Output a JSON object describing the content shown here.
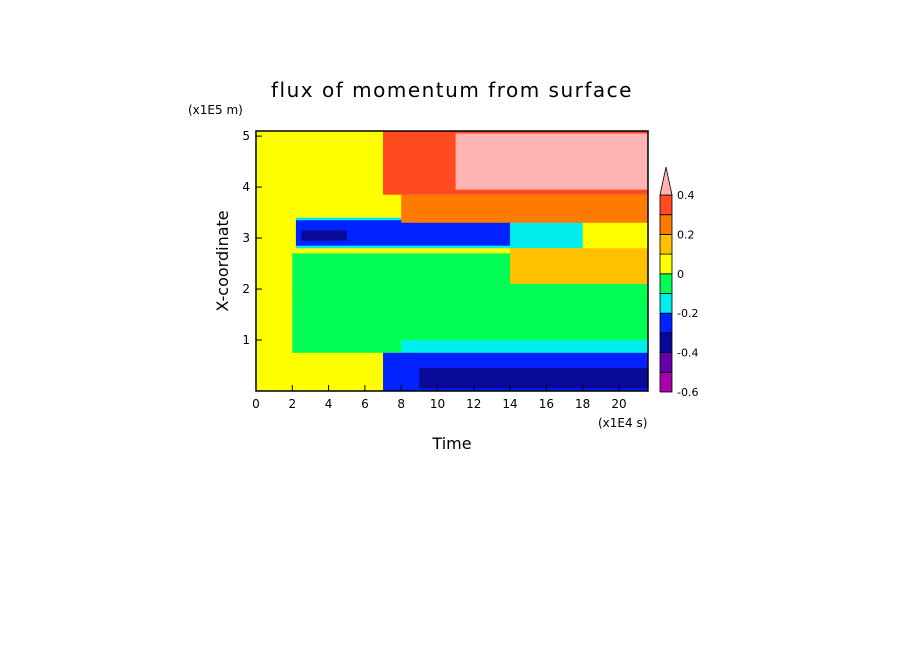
{
  "chart_data": {
    "type": "heatmap",
    "title": "flux of momentum from surface",
    "xlabel": "Time",
    "ylabel": "X-coordinate",
    "x_unit": "(x1E4 s)",
    "y_unit": "(x1E5 m)",
    "xlim": [
      0,
      21.6
    ],
    "ylim": [
      0,
      5.1
    ],
    "x_ticks": [
      0,
      2,
      4,
      6,
      8,
      10,
      12,
      14,
      16,
      18,
      20
    ],
    "x_tick_labels": [
      "0",
      "2",
      "4",
      "6",
      "8",
      "10",
      "12",
      "14",
      "16",
      "18",
      "20"
    ],
    "y_ticks": [
      1,
      2,
      3,
      4,
      5
    ],
    "y_tick_labels": [
      "1",
      "2",
      "3",
      "4",
      "5"
    ],
    "colorbar": {
      "levels": [
        -0.6,
        -0.5,
        -0.4,
        -0.3,
        -0.2,
        -0.1,
        0,
        0.1,
        0.2,
        0.3,
        0.4
      ],
      "tick_values": [
        -0.6,
        -0.4,
        -0.2,
        0,
        0.2,
        0.4
      ],
      "tick_labels": [
        "-0.6",
        "-0.4",
        "-0.2",
        "0",
        "0.2",
        "0.4"
      ],
      "colors": [
        "#aa00aa",
        "#6600aa",
        "#0a0a99",
        "#0022ff",
        "#00eeee",
        "#00ff55",
        "#ffff00",
        "#ffc000",
        "#ff7a00",
        "#ff4b1e"
      ],
      "extend_color": "#ffb4b4"
    },
    "regions": [
      {
        "name": "background-zero-to-positive",
        "x": [
          0,
          21.6
        ],
        "y": [
          0,
          5.1
        ],
        "value": 0.05
      },
      {
        "name": "lower-middle-negative",
        "x": [
          2,
          21.6
        ],
        "y": [
          0.75,
          2.0
        ],
        "value": -0.05
      },
      {
        "name": "middle-negative",
        "x": [
          2,
          21.6
        ],
        "y": [
          2.0,
          2.7
        ],
        "value": -0.05
      },
      {
        "name": "lower-cyan",
        "x": [
          8,
          21.6
        ],
        "y": [
          0.75,
          1.0
        ],
        "value": -0.15
      },
      {
        "name": "lower-blue-band",
        "x": [
          7,
          21.6
        ],
        "y": [
          0,
          0.75
        ],
        "value": -0.25
      },
      {
        "name": "lower-dark-blue-band",
        "x": [
          9,
          21.6
        ],
        "y": [
          0.05,
          0.45
        ],
        "value": -0.35
      },
      {
        "name": "upper-cyan",
        "x": [
          2.2,
          18
        ],
        "y": [
          2.8,
          3.4
        ],
        "value": -0.15
      },
      {
        "name": "upper-blue-band",
        "x": [
          2.2,
          14
        ],
        "y": [
          2.85,
          3.35
        ],
        "value": -0.25
      },
      {
        "name": "upper-dark-blue-core",
        "x": [
          2.5,
          5
        ],
        "y": [
          2.95,
          3.15
        ],
        "value": -0.35
      },
      {
        "name": "top-orange",
        "x": [
          8,
          21.6
        ],
        "y": [
          3.3,
          3.85
        ],
        "value": 0.2
      },
      {
        "name": "top-red",
        "x": [
          7,
          21.6
        ],
        "y": [
          3.85,
          5.1
        ],
        "value": 0.35
      },
      {
        "name": "top-pink",
        "x": [
          11,
          21.6
        ],
        "y": [
          3.95,
          5.05
        ],
        "value": 0.45
      },
      {
        "name": "right-orange-mid",
        "x": [
          14,
          21.6
        ],
        "y": [
          2.1,
          2.8
        ],
        "value": 0.15
      }
    ]
  }
}
